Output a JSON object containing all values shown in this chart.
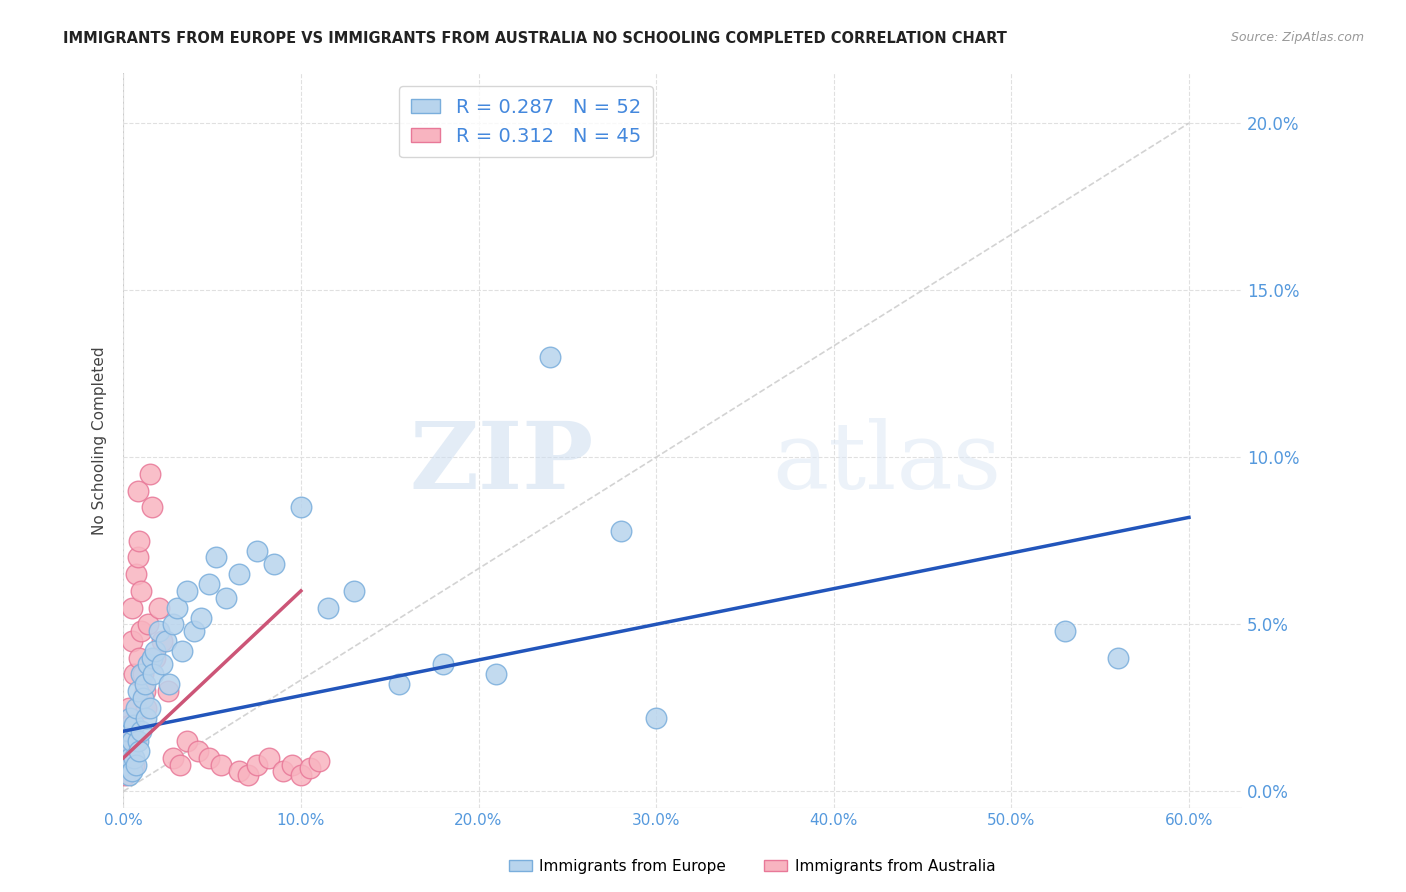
{
  "title": "IMMIGRANTS FROM EUROPE VS IMMIGRANTS FROM AUSTRALIA NO SCHOOLING COMPLETED CORRELATION CHART",
  "source": "Source: ZipAtlas.com",
  "ylabel": "No Schooling Completed",
  "xlim": [
    0.0,
    0.63
  ],
  "ylim": [
    -0.005,
    0.215
  ],
  "xticks": [
    0.0,
    0.1,
    0.2,
    0.3,
    0.4,
    0.5,
    0.6
  ],
  "yticks": [
    0.0,
    0.05,
    0.1,
    0.15,
    0.2
  ],
  "europe_x": [
    0.001,
    0.002,
    0.003,
    0.003,
    0.004,
    0.004,
    0.005,
    0.005,
    0.006,
    0.006,
    0.007,
    0.007,
    0.008,
    0.008,
    0.009,
    0.01,
    0.01,
    0.011,
    0.012,
    0.013,
    0.014,
    0.015,
    0.016,
    0.017,
    0.018,
    0.02,
    0.022,
    0.024,
    0.026,
    0.028,
    0.03,
    0.033,
    0.036,
    0.04,
    0.044,
    0.048,
    0.052,
    0.058,
    0.065,
    0.075,
    0.085,
    0.1,
    0.115,
    0.13,
    0.155,
    0.18,
    0.21,
    0.24,
    0.28,
    0.3,
    0.53,
    0.56
  ],
  "europe_y": [
    0.008,
    0.012,
    0.005,
    0.018,
    0.01,
    0.022,
    0.006,
    0.015,
    0.02,
    0.01,
    0.025,
    0.008,
    0.03,
    0.015,
    0.012,
    0.035,
    0.018,
    0.028,
    0.032,
    0.022,
    0.038,
    0.025,
    0.04,
    0.035,
    0.042,
    0.048,
    0.038,
    0.045,
    0.032,
    0.05,
    0.055,
    0.042,
    0.06,
    0.048,
    0.052,
    0.062,
    0.07,
    0.058,
    0.065,
    0.072,
    0.068,
    0.085,
    0.055,
    0.06,
    0.032,
    0.038,
    0.035,
    0.13,
    0.078,
    0.022,
    0.048,
    0.04
  ],
  "australia_x": [
    0.001,
    0.001,
    0.002,
    0.002,
    0.003,
    0.003,
    0.004,
    0.004,
    0.005,
    0.005,
    0.006,
    0.006,
    0.007,
    0.007,
    0.008,
    0.008,
    0.009,
    0.009,
    0.01,
    0.01,
    0.011,
    0.012,
    0.013,
    0.014,
    0.015,
    0.016,
    0.018,
    0.02,
    0.022,
    0.025,
    0.028,
    0.032,
    0.036,
    0.042,
    0.048,
    0.055,
    0.065,
    0.07,
    0.075,
    0.082,
    0.09,
    0.095,
    0.1,
    0.105,
    0.11
  ],
  "australia_y": [
    0.005,
    0.012,
    0.008,
    0.018,
    0.015,
    0.025,
    0.01,
    0.02,
    0.055,
    0.045,
    0.008,
    0.035,
    0.015,
    0.065,
    0.07,
    0.09,
    0.04,
    0.075,
    0.048,
    0.06,
    0.035,
    0.03,
    0.025,
    0.05,
    0.095,
    0.085,
    0.04,
    0.055,
    0.045,
    0.03,
    0.01,
    0.008,
    0.015,
    0.012,
    0.01,
    0.008,
    0.006,
    0.005,
    0.008,
    0.01,
    0.006,
    0.008,
    0.005,
    0.007,
    0.009
  ],
  "europe_R": 0.287,
  "europe_N": 52,
  "australia_R": 0.312,
  "australia_N": 45,
  "europe_color": "#b8d4ed",
  "europe_edge_color": "#7aaedc",
  "australia_color": "#f8b4c0",
  "australia_edge_color": "#e87898",
  "europe_line_color": "#2255bb",
  "australia_line_color": "#cc5577",
  "europe_line_x": [
    0.0,
    0.6
  ],
  "europe_line_y": [
    0.018,
    0.082
  ],
  "australia_line_x": [
    0.0,
    0.1
  ],
  "australia_line_y": [
    0.01,
    0.06
  ],
  "diagonal_line_color": "#c8c8c8",
  "axis_label_color": "#5599dd",
  "watermark_zip": "ZIP",
  "watermark_atlas": "atlas",
  "background_color": "#ffffff",
  "grid_color": "#e0e0e0",
  "title_color": "#222222",
  "source_color": "#999999",
  "legend_text_color": "#222222",
  "legend_value_color": "#4488dd"
}
